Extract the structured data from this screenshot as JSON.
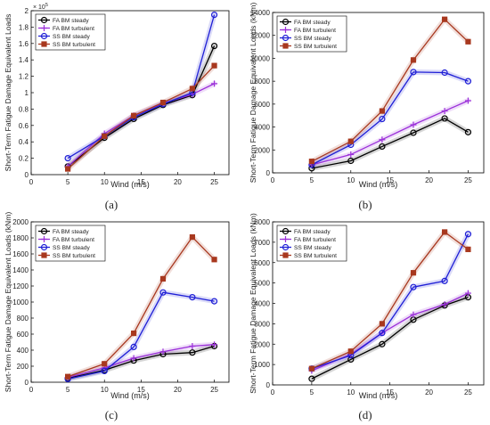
{
  "chart_data": [
    {
      "panel_label": "(a)",
      "type": "line",
      "xlabel": "Wind (m/s)",
      "ylabel": "Short-Term Fatigue Damage Equivalent Loads",
      "exponent_label": "× 10",
      "exponent_power": "5",
      "xlim": [
        0,
        27
      ],
      "ylim": [
        0,
        2
      ],
      "xticks": [
        0,
        5,
        10,
        15,
        20,
        25
      ],
      "yticks": [
        0,
        0.2,
        0.4,
        0.6,
        0.8,
        1,
        1.2,
        1.4,
        1.6,
        1.8,
        2
      ],
      "ytick_labels": [
        "0",
        "0.2",
        "0.4",
        "0.6",
        "0.8",
        "1",
        "1.2",
        "1.4",
        "1.6",
        "1.8",
        "2"
      ],
      "x": [
        5,
        10,
        14,
        18,
        22,
        25
      ],
      "legend_position": "top-left",
      "series": [
        {
          "name": "FA BM steady",
          "color": "#000000",
          "marker": "circle",
          "values": [
            0.1,
            0.45,
            0.68,
            0.85,
            0.97,
            1.57
          ]
        },
        {
          "name": "FA BM turbulent",
          "color": "#9b30d9",
          "marker": "plus",
          "values": [
            0.1,
            0.5,
            0.72,
            0.87,
            0.98,
            1.11
          ]
        },
        {
          "name": "SS BM steady",
          "color": "#1f1fd6",
          "marker": "circle",
          "values": [
            0.2,
            0.47,
            0.7,
            0.86,
            1.0,
            1.95
          ]
        },
        {
          "name": "SS BM turbulent",
          "color": "#a8381f",
          "marker": "square",
          "values": [
            0.07,
            0.47,
            0.72,
            0.88,
            1.05,
            1.33
          ]
        }
      ]
    },
    {
      "panel_label": "(b)",
      "type": "line",
      "xlabel": "Wind (m/s)",
      "ylabel": "Short-Term Fatigue Damage Equivalent Loads (kNm)",
      "xlim": [
        0,
        27
      ],
      "ylim": [
        0,
        14000
      ],
      "xticks": [
        0,
        5,
        10,
        15,
        20,
        25
      ],
      "yticks": [
        0,
        2000,
        4000,
        6000,
        8000,
        10000,
        12000,
        14000
      ],
      "ytick_labels": [
        "0",
        "2000",
        "4000",
        "6000",
        "8000",
        "10000",
        "12000",
        "14000"
      ],
      "x": [
        5,
        10,
        14,
        18,
        22,
        25
      ],
      "legend_position": "top-left",
      "series": [
        {
          "name": "FA BM steady",
          "color": "#000000",
          "marker": "circle",
          "values": [
            400,
            1050,
            2300,
            3500,
            4750,
            3550
          ]
        },
        {
          "name": "FA BM turbulent",
          "color": "#9b30d9",
          "marker": "plus",
          "values": [
            700,
            1600,
            2900,
            4200,
            5400,
            6300
          ]
        },
        {
          "name": "SS BM steady",
          "color": "#1f1fd6",
          "marker": "circle",
          "values": [
            700,
            2450,
            4700,
            8800,
            8750,
            8000
          ]
        },
        {
          "name": "SS BM turbulent",
          "color": "#a8381f",
          "marker": "square",
          "values": [
            1000,
            2750,
            5400,
            9850,
            13400,
            11450
          ]
        }
      ]
    },
    {
      "panel_label": "(c)",
      "type": "line",
      "xlabel": "Wind (m/s)",
      "ylabel": "Short-Term Fatigue Damage Equivalent Loads (kNm)",
      "xlim": [
        0,
        27
      ],
      "ylim": [
        0,
        2000
      ],
      "xticks": [
        0,
        5,
        10,
        15,
        20,
        25
      ],
      "yticks": [
        0,
        200,
        400,
        600,
        800,
        1000,
        1200,
        1400,
        1600,
        1800,
        2000
      ],
      "ytick_labels": [
        "0",
        "200",
        "400",
        "600",
        "800",
        "1000",
        "1200",
        "1400",
        "1600",
        "1800",
        "2000"
      ],
      "x": [
        5,
        10,
        14,
        18,
        22,
        25
      ],
      "legend_position": "top-left",
      "series": [
        {
          "name": "FA BM steady",
          "color": "#000000",
          "marker": "circle",
          "values": [
            50,
            150,
            270,
            350,
            370,
            450
          ]
        },
        {
          "name": "FA BM turbulent",
          "color": "#9b30d9",
          "marker": "plus",
          "values": [
            60,
            180,
            300,
            380,
            450,
            470
          ]
        },
        {
          "name": "SS BM steady",
          "color": "#1f1fd6",
          "marker": "circle",
          "values": [
            40,
            140,
            440,
            1120,
            1060,
            1010
          ]
        },
        {
          "name": "SS BM turbulent",
          "color": "#a8381f",
          "marker": "square",
          "values": [
            70,
            230,
            610,
            1290,
            1810,
            1530
          ]
        }
      ]
    },
    {
      "panel_label": "(d)",
      "type": "line",
      "xlabel": "Wind (m/s)",
      "ylabel": "Short-Term Fatigue Damage Equivalent Loads (kNm)",
      "xlim": [
        0,
        27
      ],
      "ylim": [
        0,
        8000
      ],
      "xticks": [
        0,
        5,
        10,
        15,
        20,
        25
      ],
      "yticks": [
        0,
        1000,
        2000,
        3000,
        4000,
        5000,
        6000,
        7000,
        8000
      ],
      "ytick_labels": [
        "0",
        "1000",
        "2000",
        "3000",
        "4000",
        "5000",
        "6000",
        "7000",
        "8000"
      ],
      "x": [
        5,
        10,
        14,
        18,
        22,
        25
      ],
      "legend_position": "top-left",
      "series": [
        {
          "name": "FA BM steady",
          "color": "#000000",
          "marker": "circle",
          "values": [
            300,
            1250,
            2000,
            3200,
            3900,
            4300
          ]
        },
        {
          "name": "FA BM turbulent",
          "color": "#9b30d9",
          "marker": "plus",
          "values": [
            700,
            1500,
            2550,
            3450,
            3950,
            4500
          ]
        },
        {
          "name": "SS BM steady",
          "color": "#1f1fd6",
          "marker": "circle",
          "values": [
            800,
            1450,
            2550,
            4800,
            5100,
            7400
          ]
        },
        {
          "name": "SS BM turbulent",
          "color": "#a8381f",
          "marker": "square",
          "values": [
            800,
            1650,
            3000,
            5500,
            7500,
            6650
          ]
        }
      ]
    }
  ]
}
